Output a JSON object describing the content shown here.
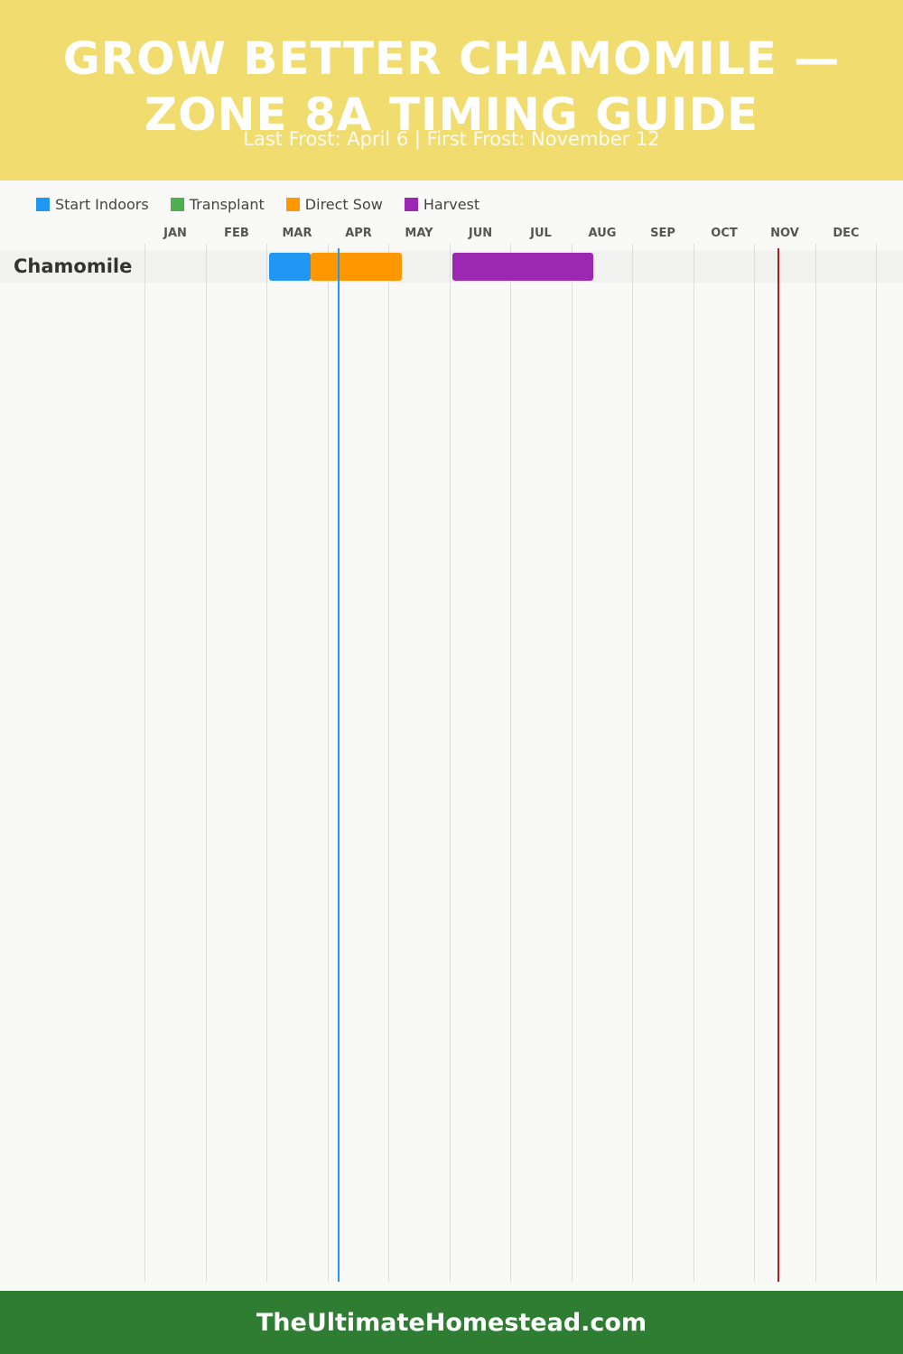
{
  "header": {
    "title": "GROW BETTER CHAMOMILE — ZONE 8A TIMING GUIDE",
    "subtitle": "Last Frost: April 6 | First Frost: November 12"
  },
  "colors": {
    "header_bg": "#f1dc6f",
    "footer_bg": "#2e7d32",
    "start_indoors": "#2196f3",
    "transplant": "#4caf50",
    "direct_sow": "#ff9800",
    "harvest": "#9c27b0",
    "last_frost_line": "#2196f3",
    "first_frost_line": "#b71c1c"
  },
  "chart_data": {
    "type": "gantt",
    "x_unit": "month of year (1 = start of January, 13 = end of December)",
    "xlim": [
      1,
      13
    ],
    "months": [
      "JAN",
      "FEB",
      "MAR",
      "APR",
      "MAY",
      "JUN",
      "JUL",
      "AUG",
      "SEP",
      "OCT",
      "NOV",
      "DEC"
    ],
    "legend": [
      {
        "label": "Start Indoors",
        "color_key": "start_indoors"
      },
      {
        "label": "Transplant",
        "color_key": "transplant"
      },
      {
        "label": "Direct Sow",
        "color_key": "direct_sow"
      },
      {
        "label": "Harvest",
        "color_key": "harvest"
      }
    ],
    "crops": [
      {
        "name": "Chamomile",
        "periods": [
          {
            "type": "start_indoors",
            "start": 3.05,
            "end": 3.72
          },
          {
            "type": "direct_sow",
            "start": 3.72,
            "end": 5.22
          },
          {
            "type": "harvest",
            "start": 6.05,
            "end": 8.36
          }
        ]
      }
    ],
    "frost_markers": [
      {
        "label": "Last Frost",
        "date": "April 6",
        "x": 4.19,
        "color_key": "last_frost_line"
      },
      {
        "label": "First Frost",
        "date": "November 12",
        "x": 11.4,
        "color_key": "first_frost_line"
      }
    ]
  },
  "footer": {
    "text": "TheUltimateHomestead.com"
  }
}
